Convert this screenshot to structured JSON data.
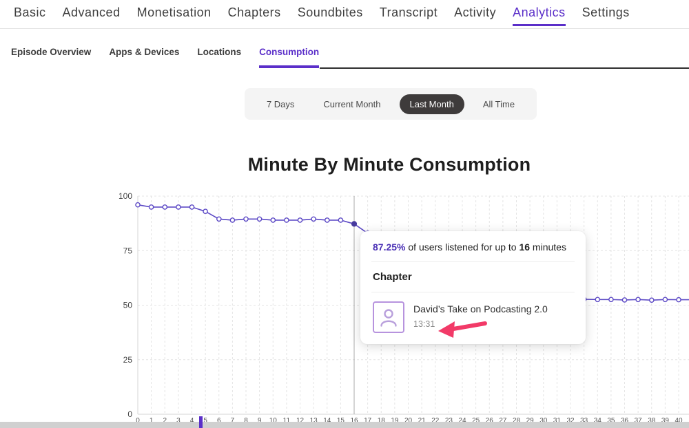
{
  "colors": {
    "accent": "#5b2fc9",
    "chart_line": "#5b48c5",
    "arrow": "#f23a68",
    "pill_active_bg": "#3e3b3b",
    "tooltip_icon_border": "#b793de"
  },
  "nav": {
    "items": [
      {
        "label": "Basic",
        "active": false
      },
      {
        "label": "Advanced",
        "active": false
      },
      {
        "label": "Monetisation",
        "active": false
      },
      {
        "label": "Chapters",
        "active": false
      },
      {
        "label": "Soundbites",
        "active": false
      },
      {
        "label": "Transcript",
        "active": false
      },
      {
        "label": "Activity",
        "active": false
      },
      {
        "label": "Analytics",
        "active": true
      },
      {
        "label": "Settings",
        "active": false
      }
    ]
  },
  "subtabs": {
    "items": [
      {
        "label": "Episode Overview",
        "active": false
      },
      {
        "label": "Apps & Devices",
        "active": false
      },
      {
        "label": "Locations",
        "active": false
      },
      {
        "label": "Consumption",
        "active": true
      }
    ]
  },
  "time_ranges": {
    "items": [
      {
        "label": "7 Days",
        "active": false
      },
      {
        "label": "Current Month",
        "active": false
      },
      {
        "label": "Last Month",
        "active": true
      },
      {
        "label": "All Time",
        "active": false
      }
    ]
  },
  "tooltip": {
    "percent": "87.25%",
    "mid": " of users listened for up to ",
    "minutes": "16",
    "end": " minutes",
    "section_label": "Chapter",
    "chapter_title": "David’s Take on Podcasting 2.0",
    "chapter_time": "13:31"
  },
  "chart_data": {
    "type": "line",
    "title": "Minute By Minute Consumption",
    "xlabel": "",
    "ylabel": "",
    "xlim": [
      0,
      40
    ],
    "ylim": [
      0,
      100
    ],
    "yticks": [
      0,
      25,
      50,
      75,
      100
    ],
    "grid": true,
    "legend": false,
    "hover_x": 16,
    "hover_value": 87.25,
    "hidden_by_tooltip_x_range": [
      17,
      33
    ],
    "x": [
      0,
      1,
      2,
      3,
      4,
      5,
      6,
      7,
      8,
      9,
      10,
      11,
      12,
      13,
      14,
      15,
      16,
      17,
      18,
      19,
      20,
      21,
      22,
      23,
      24,
      25,
      26,
      27,
      28,
      29,
      30,
      31,
      32,
      33,
      34,
      35,
      36,
      37,
      38,
      39,
      40
    ],
    "values": [
      96,
      95,
      95,
      95,
      95,
      93,
      89.5,
      89,
      89.5,
      89.5,
      89,
      89,
      89,
      89.5,
      89,
      89,
      87.25,
      83,
      80,
      77,
      74,
      71,
      68,
      65,
      62,
      59.5,
      57.5,
      56,
      55,
      54.2,
      53.6,
      53.2,
      52.9,
      52.7,
      52.6,
      52.6,
      52.4,
      52.6,
      52.3,
      52.6,
      52.5
    ]
  }
}
